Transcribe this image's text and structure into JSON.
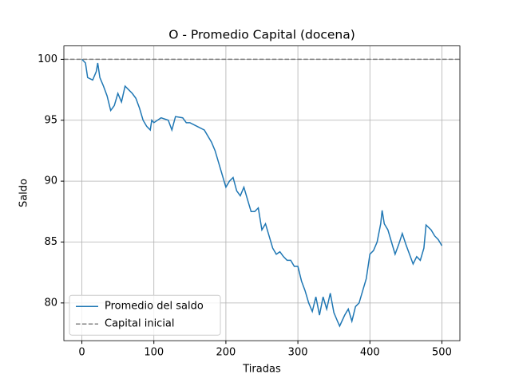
{
  "chart_data": {
    "type": "line",
    "title": "O - Promedio Capital (docena)",
    "x_label": "Tiradas",
    "y_label": "Saldo",
    "xlim": [
      -25,
      525
    ],
    "ylim": [
      76.9,
      101.1
    ],
    "xticks": [
      0,
      100,
      200,
      300,
      400,
      500
    ],
    "yticks": [
      80,
      85,
      90,
      95,
      100
    ],
    "grid": true,
    "legend_position": "lower left",
    "series": [
      {
        "name": "Promedio del saldo",
        "color": "#1f77b4",
        "x": [
          0,
          5,
          8,
          15,
          20,
          22,
          25,
          30,
          35,
          40,
          45,
          50,
          55,
          60,
          65,
          70,
          75,
          80,
          85,
          90,
          95,
          97,
          100,
          110,
          120,
          125,
          130,
          140,
          145,
          150,
          160,
          170,
          180,
          185,
          190,
          195,
          200,
          205,
          210,
          215,
          220,
          225,
          230,
          235,
          240,
          245,
          250,
          255,
          260,
          265,
          270,
          275,
          280,
          285,
          290,
          295,
          300,
          305,
          310,
          315,
          320,
          325,
          330,
          335,
          340,
          345,
          350,
          355,
          358,
          365,
          370,
          375,
          380,
          385,
          390,
          395,
          400,
          405,
          410,
          415,
          417,
          420,
          425,
          430,
          435,
          440,
          445,
          450,
          455,
          460,
          465,
          470,
          475,
          478,
          485,
          490,
          495,
          500
        ],
        "values": [
          100,
          99.7,
          98.5,
          98.3,
          99.0,
          99.7,
          98.5,
          97.8,
          97.0,
          95.8,
          96.2,
          97.2,
          96.5,
          97.8,
          97.5,
          97.2,
          96.8,
          96.0,
          95.0,
          94.5,
          94.2,
          95.0,
          94.8,
          95.2,
          95.0,
          94.2,
          95.3,
          95.2,
          94.8,
          94.8,
          94.5,
          94.2,
          93.2,
          92.5,
          91.5,
          90.5,
          89.5,
          90.0,
          90.3,
          89.2,
          88.8,
          89.5,
          88.5,
          87.5,
          87.5,
          87.8,
          86.0,
          86.5,
          85.5,
          84.5,
          84.0,
          84.2,
          83.8,
          83.5,
          83.5,
          83.0,
          83.0,
          81.8,
          81.0,
          80.0,
          79.3,
          80.5,
          79.0,
          80.5,
          79.5,
          80.8,
          79.2,
          78.5,
          78.1,
          79.0,
          79.5,
          78.5,
          79.7,
          80.0,
          81.0,
          82.0,
          84.0,
          84.3,
          85.0,
          86.5,
          87.6,
          86.5,
          86.0,
          85.0,
          84.0,
          84.8,
          85.7,
          84.8,
          84.0,
          83.2,
          83.8,
          83.5,
          84.5,
          86.4,
          86.0,
          85.5,
          85.2,
          84.7
        ]
      }
    ],
    "hlines": [
      {
        "name": "Capital inicial",
        "value": 100,
        "color": "gray"
      }
    ]
  }
}
